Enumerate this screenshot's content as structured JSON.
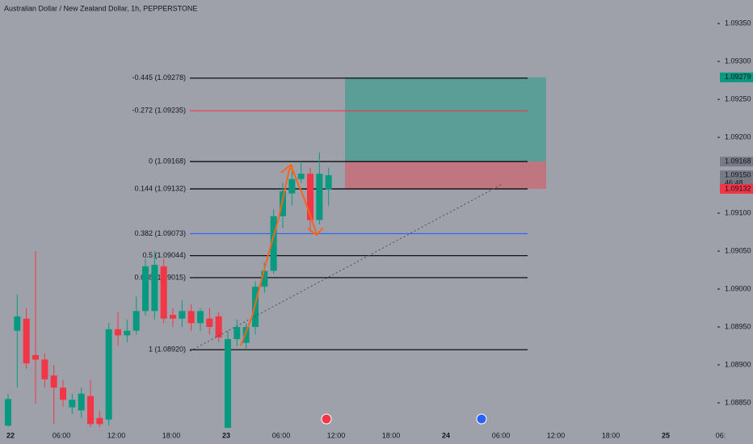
{
  "chart_data": {
    "type": "candlestick",
    "title": "Australian Dollar / New Zealand Dollar, 1h, PEPPERSTONE",
    "up_color": "#089981",
    "down_color": "#f23645",
    "categories": [
      null,
      null,
      null,
      null,
      null,
      null,
      null,
      null,
      null,
      null,
      null,
      null,
      null,
      null,
      null,
      null,
      null,
      null,
      null,
      null,
      null,
      null,
      null,
      null,
      null,
      null,
      null,
      null,
      null,
      null,
      null,
      null,
      null,
      null,
      null,
      null
    ],
    "open": [
      1.0882,
      1.08945,
      1.08961,
      1.08913,
      1.08907,
      1.08886,
      1.0887,
      1.08844,
      1.0884,
      1.08859,
      1.0883,
      1.08828,
      1.08947,
      1.08939,
      1.08945,
      1.08971,
      1.08971,
      1.0903,
      1.08966,
      1.08961,
      1.08971,
      1.08955,
      1.08961,
      1.08964,
      1.08817,
      1.08934,
      1.08929,
      1.0895,
      1.09003,
      1.09024,
      1.09096,
      1.09126,
      1.09145,
      1.09152,
      1.09091,
      1.09131
    ],
    "high": [
      1.08862,
      1.08993,
      1.08975,
      1.0905,
      1.08915,
      1.089,
      1.0888,
      1.08862,
      1.0887,
      1.0888,
      1.0884,
      1.08955,
      1.0897,
      1.0896,
      1.0899,
      1.0904,
      1.0905,
      1.0904,
      1.08975,
      1.08985,
      1.0898,
      1.08975,
      1.08975,
      1.0897,
      1.08945,
      1.0896,
      1.08955,
      1.0901,
      1.09035,
      1.09105,
      1.0914,
      1.0916,
      1.09168,
      1.0916,
      1.0918,
      1.0916
    ],
    "low": [
      1.08818,
      1.0887,
      1.08895,
      1.08849,
      1.0887,
      1.08822,
      1.08845,
      1.08835,
      1.0883,
      1.08818,
      1.08818,
      1.0882,
      1.08925,
      1.0893,
      1.0894,
      1.08965,
      1.0896,
      1.08955,
      1.0895,
      1.0895,
      1.08945,
      1.08945,
      1.0894,
      1.0893,
      1.08817,
      1.08925,
      1.0892,
      1.0894,
      1.08995,
      1.0902,
      1.0908,
      1.0911,
      1.0914,
      1.09075,
      1.09085,
      1.0911
    ],
    "close": [
      1.08855,
      1.08964,
      1.08902,
      1.08907,
      1.08881,
      1.0887,
      1.08854,
      1.08854,
      1.08862,
      1.08822,
      1.08822,
      1.08947,
      1.08939,
      1.08945,
      1.08971,
      1.0903,
      1.09032,
      1.08961,
      1.08961,
      1.08971,
      1.08955,
      1.08971,
      1.0895,
      1.08936,
      1.08934,
      1.0895,
      1.0895,
      1.09003,
      1.09024,
      1.09096,
      1.09129,
      1.09145,
      1.09152,
      1.09091,
      1.09152,
      1.0915
    ],
    "ylim": [
      1.08817,
      1.09381
    ],
    "yticks": [
      {
        "value": 1.0935,
        "label": "1.09350"
      },
      {
        "value": 1.093,
        "label": "1.09300"
      },
      {
        "value": 1.0925,
        "label": "1.09250"
      },
      {
        "value": 1.092,
        "label": "1.09200"
      },
      {
        "value": 1.091,
        "label": "1.09100"
      },
      {
        "value": 1.0905,
        "label": "1.09050"
      },
      {
        "value": 1.09,
        "label": "1.09000"
      },
      {
        "value": 1.0895,
        "label": "1.08950"
      },
      {
        "value": 1.089,
        "label": "1.08900"
      },
      {
        "value": 1.0885,
        "label": "1.08850"
      }
    ],
    "x_axis_labels": [
      "22",
      "06:00",
      "12:00",
      "18:00",
      "23",
      "06:00",
      "12:00",
      "18:00",
      "24",
      "06:00",
      "12:00",
      "18:00",
      "25",
      "06:"
    ],
    "fib_levels": [
      {
        "label": "-0.445 (1.09278)",
        "value": 1.09278,
        "color": "#000000"
      },
      {
        "label": "-0.272 (1.09235)",
        "value": 1.09235,
        "color": "#f23645"
      },
      {
        "label": "0 (1.09168)",
        "value": 1.09168,
        "color": "#000000"
      },
      {
        "label": "0.144 (1.09132)",
        "value": 1.09132,
        "color": "#000000"
      },
      {
        "label": "0.382 (1.09073)",
        "value": 1.09073,
        "color": "#2962ff"
      },
      {
        "label": "0.5 (1.09044)",
        "value": 1.09044,
        "color": "#000000"
      },
      {
        "label": "0.618 (1.09015)",
        "value": 1.09015,
        "color": "#000000"
      },
      {
        "label": "1 (1.08920)",
        "value": 1.0892,
        "color": "#000000"
      }
    ],
    "position": {
      "target": 1.09279,
      "entry": 1.09168,
      "stop": 1.09132
    },
    "price_tags": [
      {
        "label": "1.09279",
        "value": 1.09279,
        "color": "#089981"
      },
      {
        "label": "1.09168",
        "value": 1.09168,
        "color": "#787b86"
      },
      {
        "label": "1.09150",
        "value": 1.0915,
        "color": "#787b86"
      },
      {
        "label": "1.09132",
        "value": 1.09132,
        "color": "#f23645"
      }
    ],
    "countdown": "46:48"
  }
}
